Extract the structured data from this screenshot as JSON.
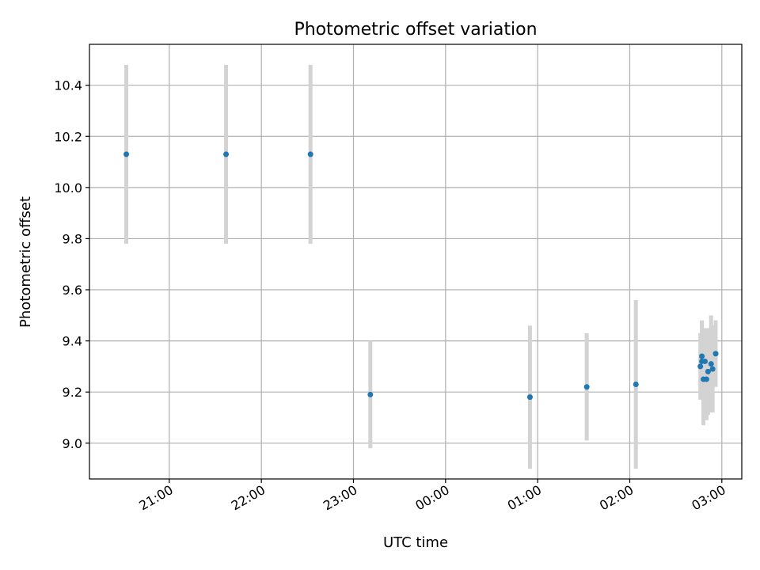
{
  "chart_data": {
    "type": "scatter",
    "title": "Photometric offset variation",
    "xlabel": "UTC time",
    "ylabel": "Photometric offset",
    "x_ticks": [
      "21:00",
      "22:00",
      "23:00",
      "00:00",
      "01:00",
      "02:00",
      "03:00"
    ],
    "y_ticks": [
      "9.0",
      "9.2",
      "9.4",
      "9.6",
      "9.8",
      "10.0",
      "10.2",
      "10.4"
    ],
    "xlim": [
      "20:08",
      "03:13"
    ],
    "ylim": [
      8.86,
      10.56
    ],
    "grid": true,
    "colors": {
      "point": "#1f77b4",
      "errorbar": "#d3d3d3"
    },
    "series": [
      {
        "points": [
          {
            "x": "20:32",
            "y": 10.13,
            "err": 0.35
          },
          {
            "x": "21:37",
            "y": 10.13,
            "err": 0.35
          },
          {
            "x": "22:32",
            "y": 10.13,
            "err": 0.35
          },
          {
            "x": "23:11",
            "y": 9.19,
            "err": 0.21
          },
          {
            "x": "00:55",
            "y": 9.18,
            "err": 0.28
          },
          {
            "x": "01:32",
            "y": 9.22,
            "err": 0.21
          },
          {
            "x": "02:04",
            "y": 9.23,
            "err": 0.33
          },
          {
            "x": "02:46",
            "y": 9.3,
            "err": 0.13
          },
          {
            "x": "02:47",
            "y": 9.32,
            "err": 0.15
          },
          {
            "x": "02:47",
            "y": 9.34,
            "err": 0.14
          },
          {
            "x": "02:48",
            "y": 9.25,
            "err": 0.18
          },
          {
            "x": "02:49",
            "y": 9.32,
            "err": 0.13
          },
          {
            "x": "02:50",
            "y": 9.25,
            "err": 0.16
          },
          {
            "x": "02:51",
            "y": 9.28,
            "err": 0.17
          },
          {
            "x": "02:53",
            "y": 9.31,
            "err": 0.19
          },
          {
            "x": "02:54",
            "y": 9.29,
            "err": 0.17
          },
          {
            "x": "02:56",
            "y": 9.35,
            "err": 0.13
          }
        ]
      }
    ]
  }
}
